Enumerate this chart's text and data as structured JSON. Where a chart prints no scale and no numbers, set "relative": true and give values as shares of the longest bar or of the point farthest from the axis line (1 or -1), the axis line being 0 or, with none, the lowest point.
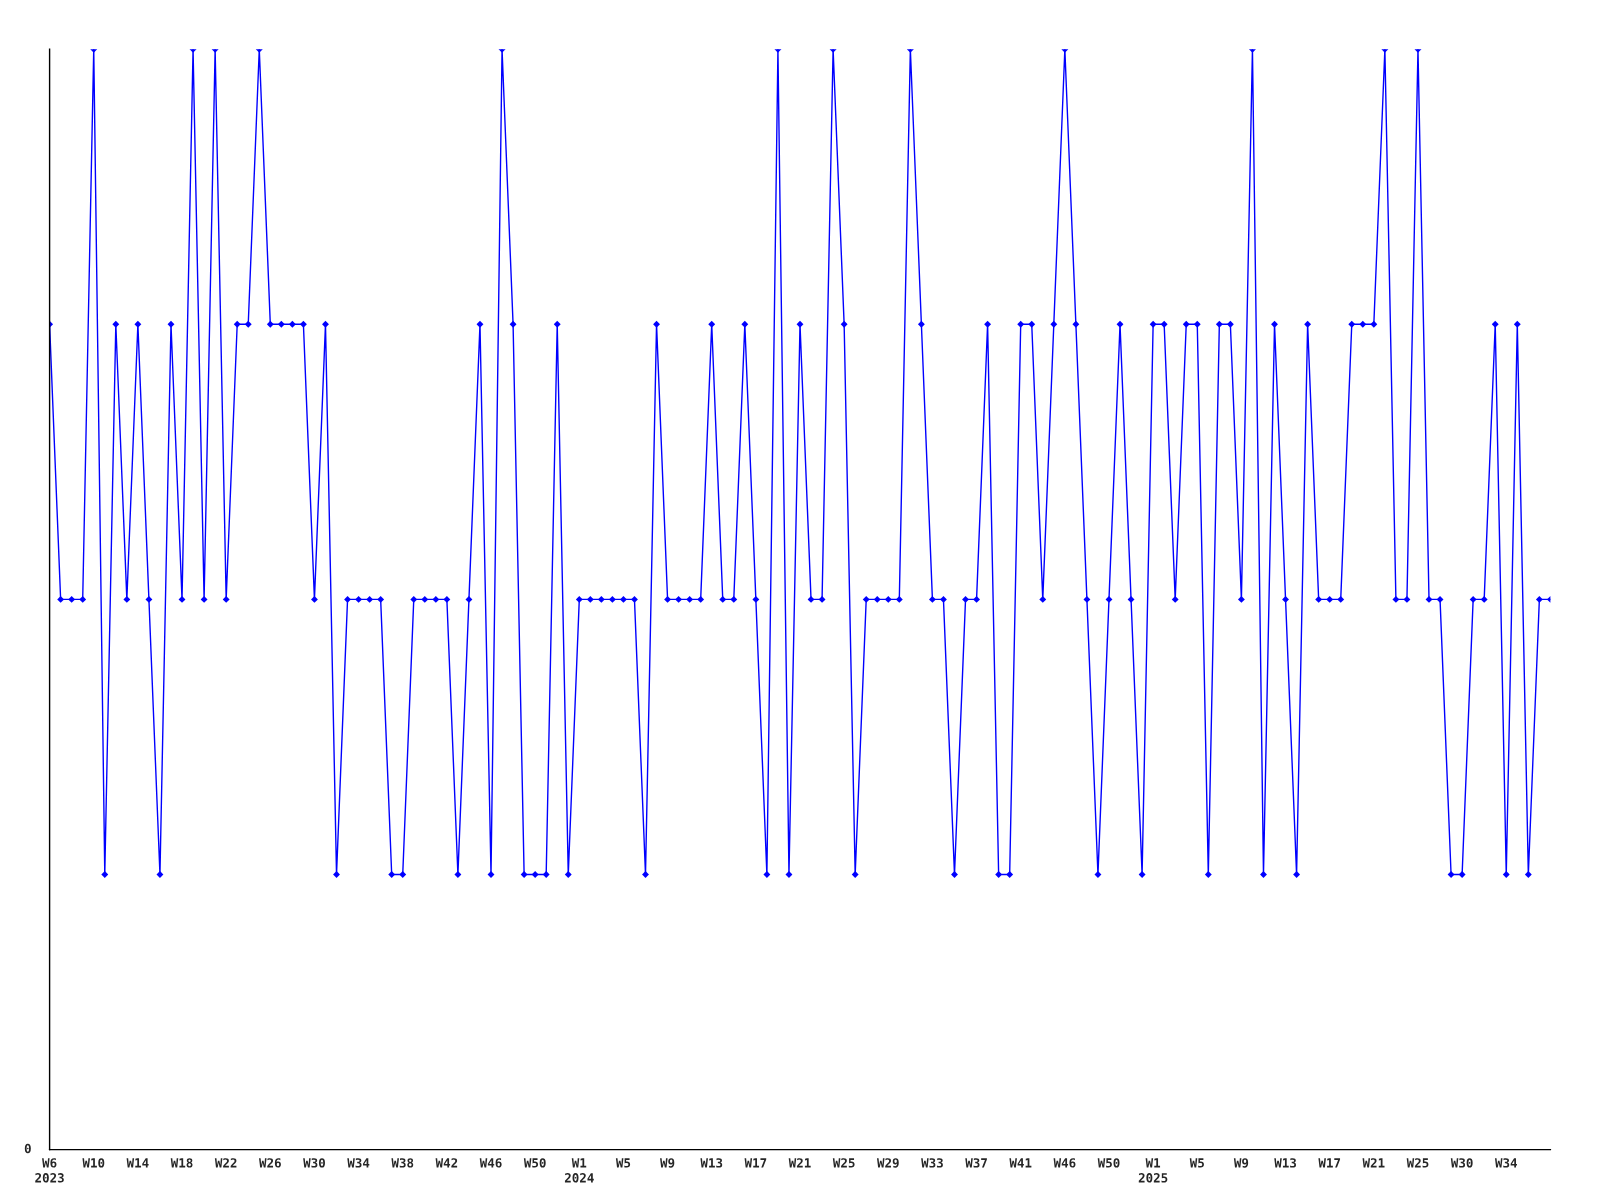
{
  "chart_data": {
    "type": "line",
    "relative": true,
    "marker": "diamond",
    "line_style": "solid",
    "annotations": [
      "0"
    ],
    "categories": [
      "W6\n2023",
      null,
      null,
      null,
      "W10",
      null,
      null,
      null,
      "W14",
      null,
      null,
      null,
      "W18",
      null,
      null,
      null,
      "W22",
      null,
      null,
      null,
      "W26",
      null,
      null,
      null,
      "W30",
      null,
      null,
      null,
      "W34",
      null,
      null,
      null,
      "W38",
      null,
      null,
      null,
      "W42",
      null,
      null,
      null,
      "W46",
      null,
      null,
      null,
      "W50",
      null,
      null,
      null,
      "W1\n2024",
      null,
      null,
      null,
      "W5",
      null,
      null,
      null,
      "W9",
      null,
      null,
      null,
      "W13",
      null,
      null,
      null,
      "W17",
      null,
      null,
      null,
      "W21",
      null,
      null,
      null,
      "W25",
      null,
      null,
      null,
      "W29",
      null,
      null,
      null,
      "W33",
      null,
      null,
      null,
      "W37",
      null,
      null,
      null,
      "W41",
      null,
      null,
      null,
      "W46",
      null,
      null,
      null,
      "W50",
      null,
      null,
      null,
      "W1\n2025",
      null,
      null,
      null,
      "W5",
      null,
      null,
      null,
      "W9",
      null,
      null,
      null,
      "W13",
      null,
      null,
      null,
      "W17",
      null,
      null,
      null,
      "W21",
      null,
      null,
      null,
      "W25",
      null,
      null,
      null,
      "W30",
      null,
      null,
      null,
      "W34",
      null,
      null,
      null,
      null
    ],
    "series": [
      {
        "color": "#0000ff",
        "values": [
          0.75,
          0.5,
          0.5,
          0.5,
          1,
          0.25,
          0.75,
          0.5,
          0.75,
          0.5,
          0.25,
          0.75,
          0.5,
          1,
          0.5,
          1,
          0.5,
          0.75,
          0.75,
          1,
          0.75,
          0.75,
          0.75,
          0.75,
          0.5,
          0.75,
          0.25,
          0.5,
          0.5,
          0.5,
          0.5,
          0.25,
          0.25,
          0.5,
          0.5,
          0.5,
          0.5,
          0.25,
          0.5,
          0.75,
          0.25,
          1,
          0.75,
          0.25,
          0.25,
          0.25,
          0.75,
          0.25,
          0.5,
          0.5,
          0.5,
          0.5,
          0.5,
          0.5,
          0.25,
          0.75,
          0.5,
          0.5,
          0.5,
          0.5,
          0.75,
          0.5,
          0.5,
          0.75,
          0.5,
          0.25,
          1,
          0.25,
          0.75,
          0.5,
          0.5,
          1,
          0.75,
          0.25,
          0.5,
          0.5,
          0.5,
          0.5,
          1,
          0.75,
          0.5,
          0.5,
          0.25,
          0.5,
          0.5,
          0.75,
          0.25,
          0.25,
          0.75,
          0.75,
          0.5,
          0.75,
          1,
          0.75,
          0.5,
          0.25,
          0.5,
          0.75,
          0.5,
          0.25,
          0.75,
          0.75,
          0.5,
          0.75,
          0.75,
          0.25,
          0.75,
          0.75,
          0.5,
          1,
          0.25,
          0.75,
          0.5,
          0.25,
          0.75,
          0.5,
          0.5,
          0.5,
          0.75,
          0.75,
          0.75,
          1,
          0.5,
          0.5,
          1,
          0.5,
          0.5,
          0.25,
          0.25,
          0.5,
          0.5,
          0.75,
          0.25,
          0.75,
          0.25,
          0.5,
          0.5
        ]
      }
    ]
  }
}
